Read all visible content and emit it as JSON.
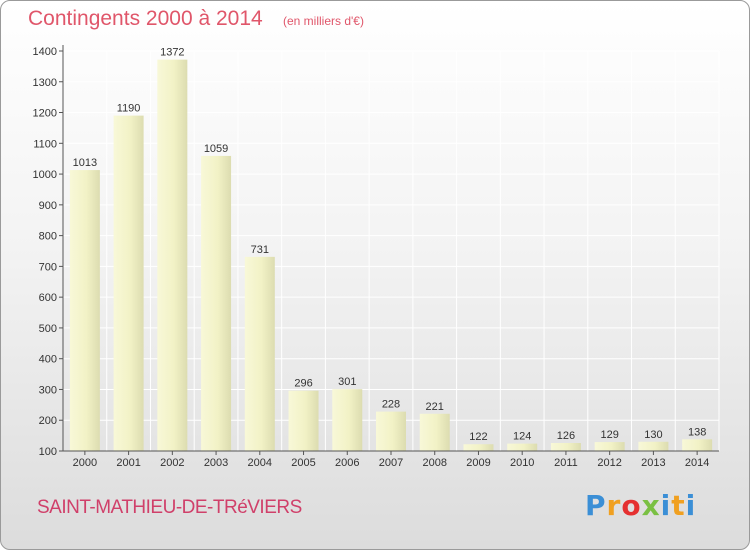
{
  "header": {
    "title": "Contingents 2000 à 2014",
    "subtitle": "(en milliers d'€)"
  },
  "footer": {
    "commune": "SAINT-MATHIEU-DE-TRéVIERS",
    "logo": [
      "P",
      "r",
      "o",
      "x",
      "i",
      "t",
      "i"
    ]
  },
  "colors": {
    "title": "#e0566a",
    "bar": "#eeeec0",
    "grid": "#ffffff"
  },
  "chart_data": {
    "type": "bar",
    "title": "Contingents 2000 à 2014",
    "subtitle": "(en milliers d'€)",
    "xlabel": "",
    "ylabel": "",
    "categories": [
      "2000",
      "2001",
      "2002",
      "2003",
      "2004",
      "2005",
      "2006",
      "2007",
      "2008",
      "2009",
      "2010",
      "2011",
      "2012",
      "2013",
      "2014"
    ],
    "values": [
      1013,
      1190,
      1372,
      1059,
      731,
      296,
      301,
      228,
      221,
      122,
      124,
      126,
      129,
      130,
      138
    ],
    "ylim": [
      100,
      1400
    ],
    "yticks": [
      100,
      200,
      300,
      400,
      500,
      600,
      700,
      800,
      900,
      1000,
      1100,
      1200,
      1300,
      1400
    ],
    "grid": true,
    "data_labels": true
  }
}
